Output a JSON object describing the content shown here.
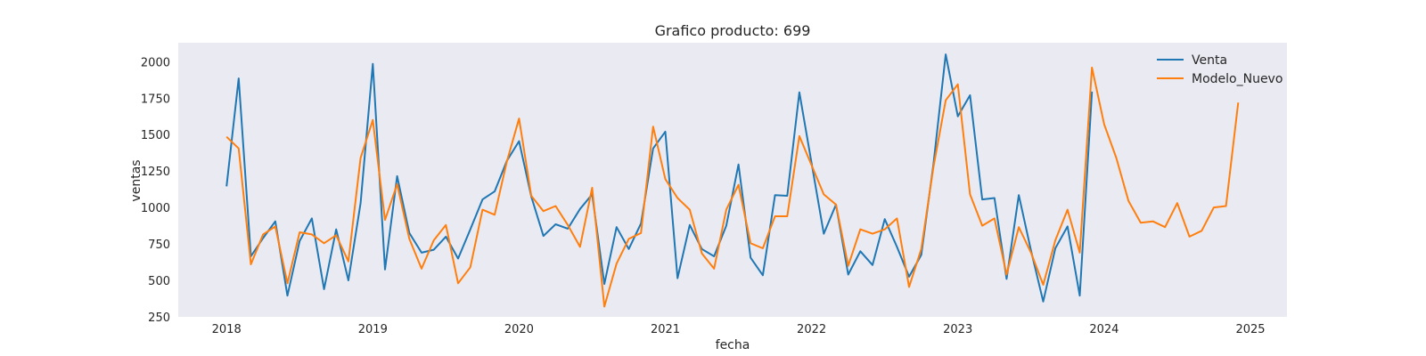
{
  "chart_data": {
    "type": "line",
    "title": "Grafico producto: 699",
    "xlabel": "fecha",
    "ylabel": "ventas",
    "x_unit": "year",
    "xlim": [
      2017.67,
      2025.25
    ],
    "ylim": [
      250,
      2130
    ],
    "x_ticks": [
      "2018",
      "2019",
      "2020",
      "2021",
      "2022",
      "2023",
      "2024",
      "2025"
    ],
    "y_ticks": [
      "250",
      "500",
      "750",
      "1000",
      "1250",
      "1500",
      "1750",
      "2000"
    ],
    "grid": false,
    "legend_position": "top-right",
    "background": "#eaeaf2",
    "series": [
      {
        "name": "Venta",
        "color": "#1f77b4",
        "start_year": 2018,
        "values": [
          1145,
          1885,
          665,
          790,
          905,
          395,
          770,
          925,
          440,
          850,
          500,
          1030,
          1985,
          575,
          1215,
          825,
          690,
          710,
          800,
          650,
          850,
          1055,
          1110,
          1320,
          1455,
          1075,
          805,
          885,
          855,
          990,
          1090,
          475,
          865,
          715,
          890,
          1405,
          1520,
          515,
          880,
          715,
          665,
          875,
          1295,
          655,
          535,
          1085,
          1080,
          1790,
          1305,
          820,
          1020,
          540,
          700,
          605,
          920,
          730,
          525,
          675,
          1300,
          2050,
          1625,
          1770,
          1055,
          1065,
          510,
          1085,
          705,
          355,
          720,
          870,
          395,
          1795
        ]
      },
      {
        "name": "Modelo_Nuevo",
        "color": "#ff7f0e",
        "start_year": 2018,
        "values": [
          1485,
          1405,
          610,
          815,
          870,
          480,
          830,
          815,
          755,
          810,
          630,
          1340,
          1600,
          915,
          1160,
          785,
          580,
          775,
          880,
          480,
          590,
          985,
          950,
          1315,
          1610,
          1080,
          975,
          1010,
          880,
          730,
          1135,
          320,
          615,
          785,
          825,
          1555,
          1195,
          1065,
          985,
          685,
          580,
          985,
          1155,
          755,
          720,
          940,
          940,
          1490,
          1290,
          1090,
          1020,
          600,
          850,
          820,
          850,
          925,
          455,
          715,
          1280,
          1735,
          1845,
          1090,
          875,
          925,
          540,
          865,
          690,
          470,
          775,
          985,
          690,
          1960,
          1570,
          1340,
          1045,
          895,
          905,
          865,
          1030,
          800,
          840,
          1000,
          1010,
          1720
        ]
      }
    ]
  }
}
